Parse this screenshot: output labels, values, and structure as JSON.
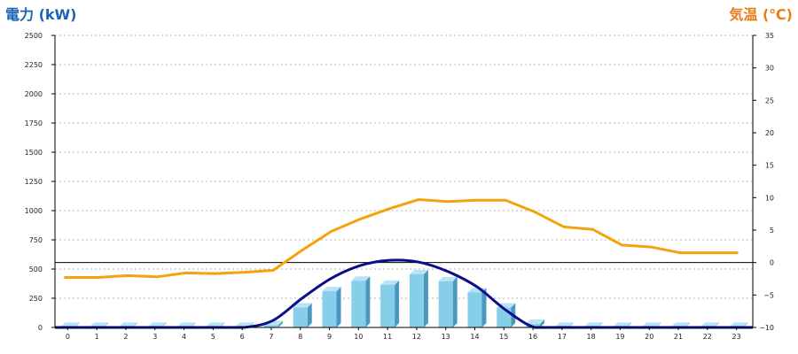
{
  "chart_data": {
    "type": "bar",
    "left_axis_title": "電力 (kW)",
    "right_axis_title": "気温 (℃)",
    "x": [
      0,
      1,
      2,
      3,
      4,
      5,
      6,
      7,
      8,
      9,
      10,
      11,
      12,
      13,
      14,
      15,
      16,
      17,
      18,
      19,
      20,
      21,
      22,
      23
    ],
    "x_tick_labels": [
      "0",
      "1",
      "2",
      "3",
      "4",
      "5",
      "6",
      "7",
      "8",
      "9",
      "10",
      "11",
      "12",
      "13",
      "14",
      "15",
      "16",
      "17",
      "18",
      "19",
      "20",
      "21",
      "22",
      "23"
    ],
    "left_axis": {
      "min": 0,
      "max": 2500,
      "step": 250,
      "tick_labels": [
        "0",
        "250",
        "500",
        "750",
        "1000",
        "1250",
        "1500",
        "1750",
        "2000",
        "2250",
        "2500"
      ]
    },
    "right_axis": {
      "min": -10,
      "max": 35,
      "step": 5,
      "tick_labels": [
        "−10",
        "−5",
        "0",
        "5",
        "10",
        "15",
        "20",
        "25",
        "30",
        "35"
      ]
    },
    "grid": "horizontal-dotted",
    "series": [
      {
        "type": "bar",
        "axis": "left",
        "values": [
          5,
          5,
          5,
          5,
          5,
          5,
          5,
          20,
          170,
          310,
          400,
          365,
          455,
          395,
          300,
          170,
          30,
          5,
          5,
          5,
          5,
          5,
          5,
          5
        ]
      },
      {
        "type": "line",
        "axis": "left",
        "values": [
          0,
          0,
          0,
          0,
          0,
          0,
          0,
          60,
          250,
          420,
          530,
          575,
          560,
          480,
          350,
          150,
          0,
          0,
          0,
          0,
          0,
          0,
          0,
          0
        ]
      },
      {
        "type": "line",
        "axis": "right",
        "values": [
          -2.3,
          -2.3,
          -2.0,
          -2.2,
          -1.6,
          -1.7,
          -1.5,
          -1.2,
          1.9,
          4.8,
          6.7,
          8.3,
          9.7,
          9.4,
          9.6,
          9.6,
          7.8,
          5.5,
          5.1,
          2.7,
          2.4,
          1.5,
          1.5,
          1.5
        ]
      }
    ],
    "colors": {
      "bars": "#87ceeb",
      "bar_side": "#4a98c0",
      "bar_top": "#b8e2f5",
      "line_left": "#0d0d8a",
      "line_right": "#f5a20f",
      "left_title": "#1a63b8",
      "right_title": "#e87e1a"
    }
  }
}
